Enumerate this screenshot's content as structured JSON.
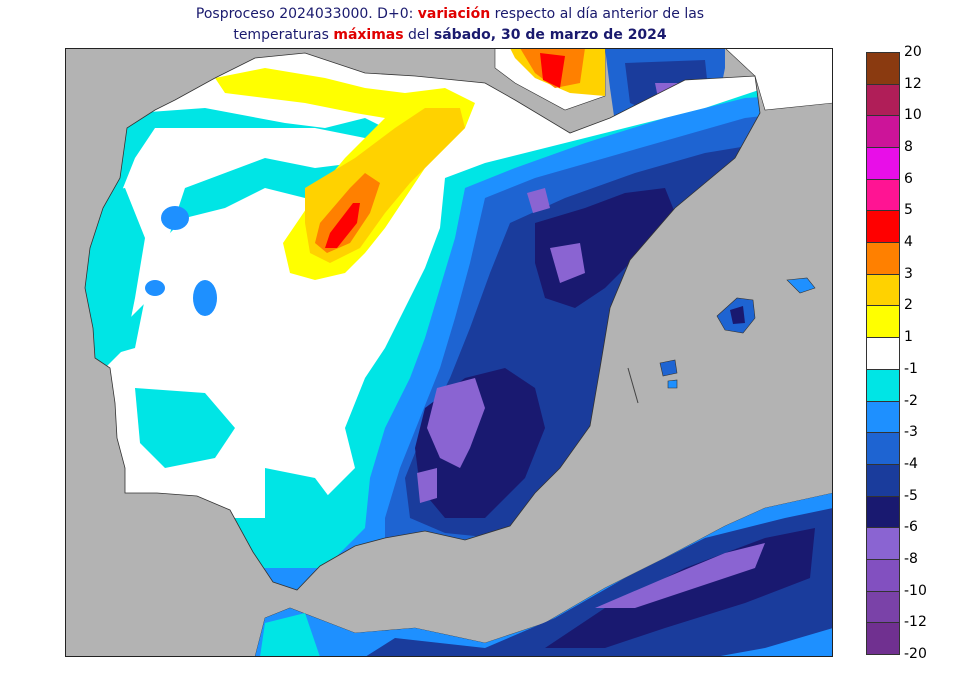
{
  "title": {
    "line1_a": "Posproceso 2024033000. D+0: ",
    "line1_b": "variación",
    "line1_c": " respecto al día anterior de las",
    "line2_a": "temperaturas ",
    "line2_b": "máximas",
    "line2_c": " del ",
    "line2_d": "sábado, 30 de marzo de 2024"
  },
  "legend": {
    "labels": [
      "20",
      "12",
      "10",
      "8",
      "6",
      "5",
      "4",
      "3",
      "2",
      "1",
      "-1",
      "-2",
      "-3",
      "-4",
      "-5",
      "-6",
      "-8",
      "-10",
      "-12",
      "-20"
    ],
    "colors": [
      "#8a3a10",
      "#b01e58",
      "#cc1499",
      "#e80ee8",
      "#ff1493",
      "#ff0000",
      "#ff8000",
      "#ffd200",
      "#ffff00",
      "#ffffff",
      "#00e5e5",
      "#1e90ff",
      "#1e64d2",
      "#1a3c9c",
      "#191970",
      "#8a64d2",
      "#8250c0",
      "#7a42a8",
      "#703090"
    ]
  },
  "colors": {
    "sea": "#b3b3b3",
    "land": "#ffffff",
    "border": "#333333"
  }
}
